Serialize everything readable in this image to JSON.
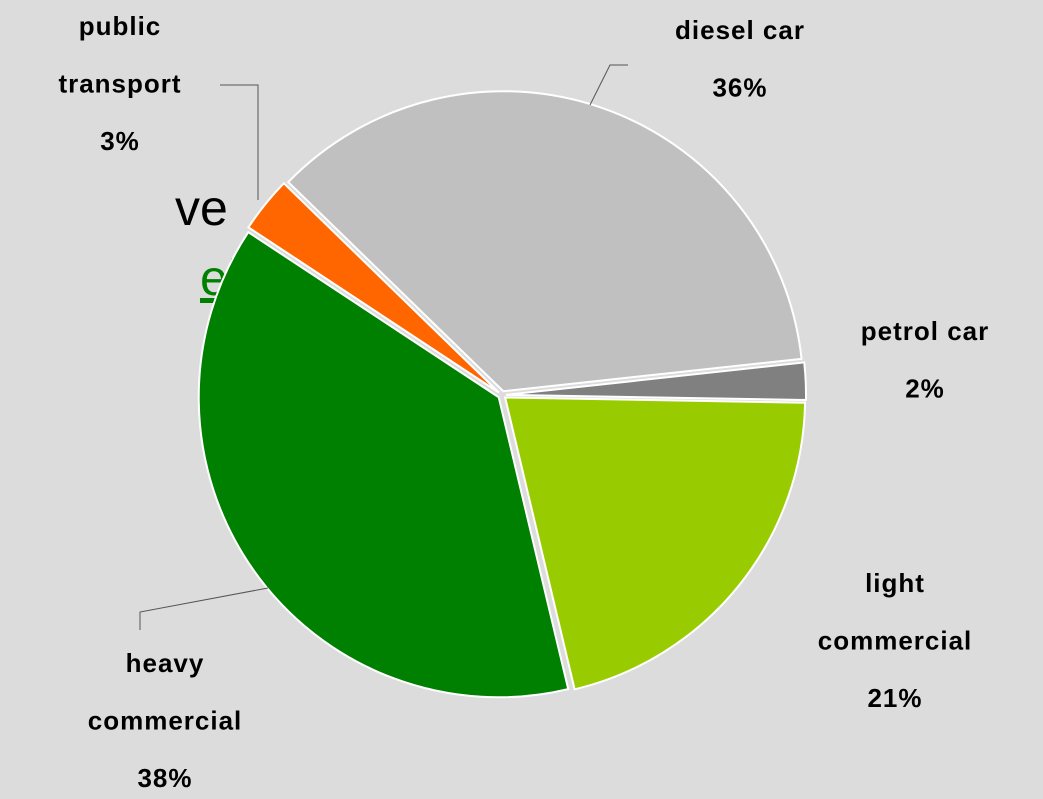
{
  "slide_text": [
    "ve",
    "el"
  ],
  "chart_data": {
    "type": "pie",
    "categories": [
      [
        "light",
        "commercial"
      ],
      [
        "heavy",
        "commercial"
      ],
      [
        "public",
        "transport"
      ],
      [
        "diesel car"
      ],
      [
        "petrol car"
      ]
    ],
    "values": [
      21,
      38,
      3,
      36,
      2
    ],
    "value_labels": [
      "21%",
      "38%",
      "3%",
      "36%",
      "2%"
    ],
    "colors": [
      "#99cc00",
      "#008000",
      "#ff6600",
      "#c0c0c0",
      "#808080"
    ]
  }
}
